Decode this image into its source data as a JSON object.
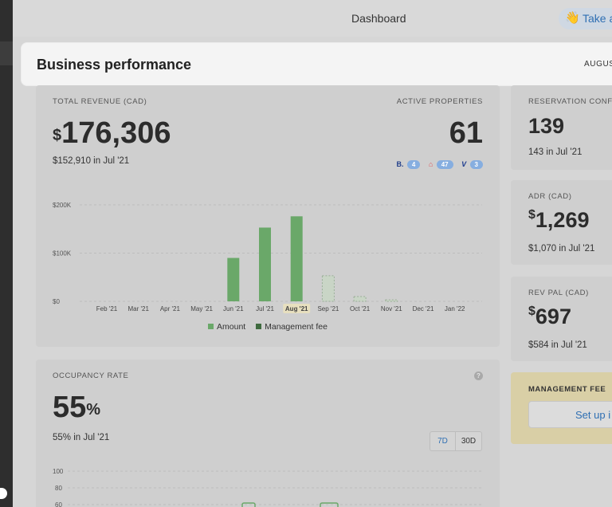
{
  "topbar": {
    "title": "Dashboard",
    "tour_label": "Take a",
    "tour_emoji": "👋"
  },
  "header": {
    "title": "Business performance",
    "period": "AUGUS"
  },
  "revenue": {
    "label": "TOTAL REVENUE (CAD)",
    "currency": "$",
    "value": "176,306",
    "previous_value": "$152,910",
    "previous_suffix": "in Jul '21"
  },
  "properties": {
    "label": "ACTIVE PROPERTIES",
    "value": "61",
    "channels": [
      {
        "icon": "booking-icon",
        "symbol": "B.",
        "count": "4",
        "color": "#223f8a"
      },
      {
        "icon": "airbnb-icon",
        "symbol": "⌂",
        "count": "47",
        "color": "#e0565b"
      },
      {
        "icon": "vrbo-icon",
        "symbol": "V",
        "count": "3",
        "color": "#1d3c8f"
      }
    ]
  },
  "chart_data": {
    "type": "bar",
    "categories": [
      "Feb '21",
      "Mar '21",
      "Apr '21",
      "May '21",
      "Jun '21",
      "Jul '21",
      "Aug '21",
      "Sep '21",
      "Oct '21",
      "Nov '21",
      "Dec '21",
      "Jan '22"
    ],
    "series": [
      {
        "name": "Amount",
        "values": [
          0,
          0,
          0,
          0,
          90000,
          152910,
          176306,
          53000,
          10000,
          3000,
          0,
          0
        ]
      }
    ],
    "projected_from_index": 7,
    "highlight_category": "Aug '21",
    "yticks": [
      "$200K",
      "$100K",
      "$0"
    ],
    "ytick_values": [
      200000,
      100000,
      0
    ],
    "ylim": [
      0,
      200000
    ],
    "grid": true,
    "legend": [
      {
        "label": "Amount",
        "color": "#6aa869"
      },
      {
        "label": "Management fee",
        "color": "#3f6b3f"
      }
    ],
    "legend_position": "bottom",
    "colors": {
      "actual": "#6aa869",
      "projected": "#c9d5c6",
      "projected_border": "#9aae98"
    }
  },
  "occupancy": {
    "label": "OCCUPANCY RATE",
    "value": "55",
    "unit": "%",
    "previous_value": "55%",
    "previous_suffix": "in Jul '21",
    "range_options": [
      "7D",
      "30D"
    ],
    "yticks": [
      "100",
      "80",
      "60"
    ],
    "help_symbol": "?"
  },
  "reservations": {
    "label": "RESERVATION CONF",
    "value": "139",
    "previous_value": "143",
    "previous_suffix": "in Jul '21"
  },
  "adr": {
    "label": "ADR (CAD)",
    "currency": "$",
    "value": "1,269",
    "previous_value": "$1,070",
    "previous_suffix": "in Jul '21"
  },
  "revpal": {
    "label": "REV PAL (CAD)",
    "currency": "$",
    "value": "697",
    "previous_value": "$584",
    "previous_suffix": "in Jul '21"
  },
  "management_fee": {
    "label": "MANAGEMENT FEE",
    "button_label": "Set up i"
  }
}
